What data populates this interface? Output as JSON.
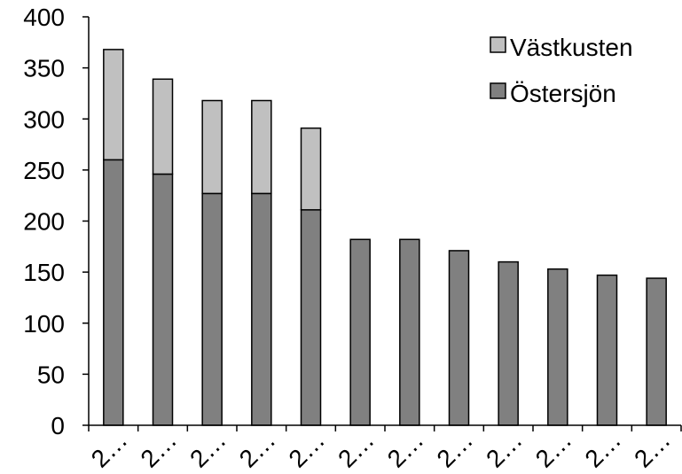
{
  "chart_data": {
    "type": "bar",
    "stacked": true,
    "title": "",
    "xlabel": "",
    "ylabel": "",
    "ylim": [
      0,
      400
    ],
    "yticks": [
      0,
      50,
      100,
      150,
      200,
      250,
      300,
      350,
      400
    ],
    "categories": [
      "2…",
      "2…",
      "2…",
      "2…",
      "2…",
      "2…",
      "2…",
      "2…",
      "2…",
      "2…",
      "2…",
      "2…"
    ],
    "series": [
      {
        "name": "Östersjön",
        "color": "#808080",
        "values": [
          260,
          246,
          227,
          227,
          211,
          182,
          182,
          171,
          160,
          153,
          147,
          144
        ]
      },
      {
        "name": "Västkusten",
        "color": "#c0c0c0",
        "values": [
          108,
          93,
          91,
          91,
          80,
          0,
          0,
          0,
          0,
          0,
          0,
          0
        ]
      }
    ],
    "legend": {
      "position": "top-right",
      "order": [
        "Västkusten",
        "Östersjön"
      ]
    },
    "grid": false
  }
}
